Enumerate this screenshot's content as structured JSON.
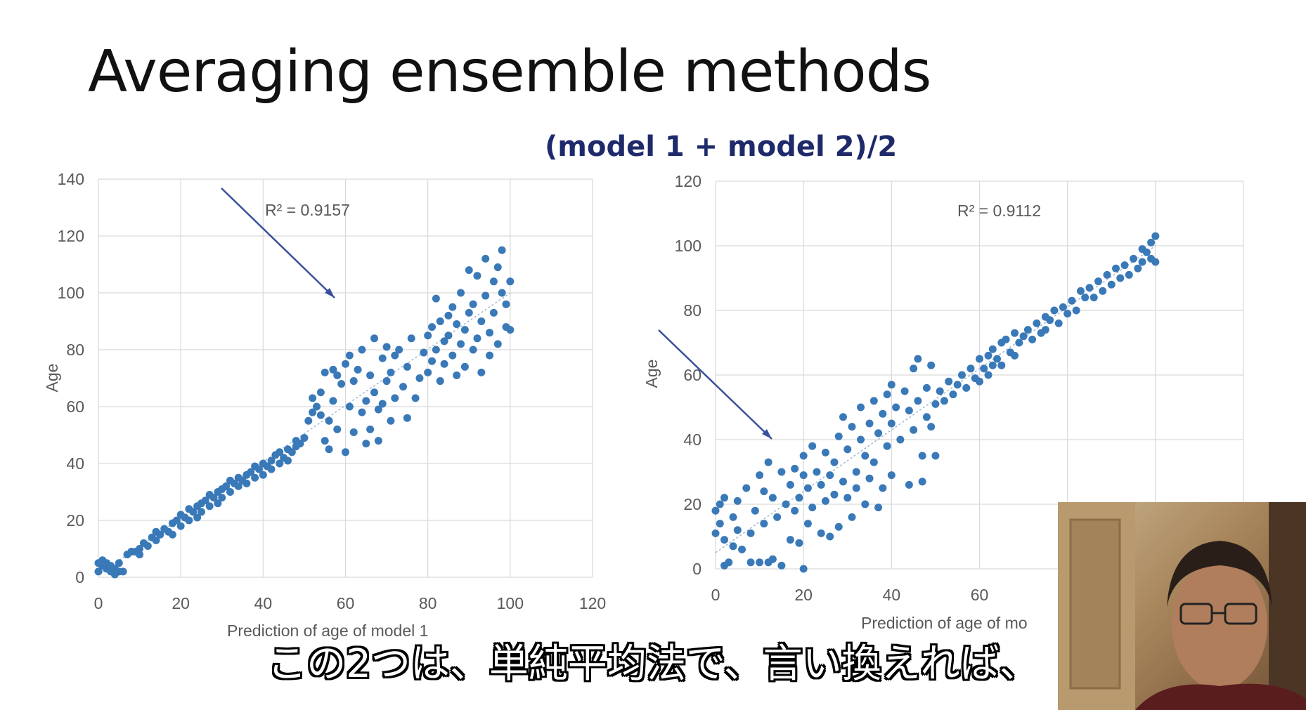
{
  "slide": {
    "title": "Averaging ensemble methods",
    "subtitle": "(model 1 + model 2)/2"
  },
  "caption": "この2つは、単純平均法で、言い換えれば、",
  "colors": {
    "points": "#3a79b8",
    "arrow": "#3a4f9c",
    "subtitle": "#1f2a6b"
  },
  "chart_data": [
    {
      "type": "scatter",
      "title": "",
      "xlabel": "Prediction of age of model 1",
      "ylabel": "Age",
      "xlim": [
        0,
        120
      ],
      "ylim": [
        0,
        140
      ],
      "xticks": [
        0,
        20,
        40,
        60,
        80,
        100,
        120
      ],
      "yticks": [
        0,
        20,
        40,
        60,
        80,
        100,
        120,
        140
      ],
      "annotation": "R² = 0.9157",
      "trendline": [
        [
          0,
          1
        ],
        [
          100,
          100
        ]
      ],
      "grid": true,
      "points": [
        [
          0,
          2
        ],
        [
          0,
          5
        ],
        [
          1,
          4
        ],
        [
          1,
          6
        ],
        [
          2,
          3
        ],
        [
          2,
          5
        ],
        [
          3,
          2
        ],
        [
          3,
          4
        ],
        [
          4,
          1
        ],
        [
          4,
          3
        ],
        [
          5,
          2
        ],
        [
          6,
          2
        ],
        [
          5,
          5
        ],
        [
          7,
          8
        ],
        [
          8,
          9
        ],
        [
          9,
          9
        ],
        [
          10,
          10
        ],
        [
          10,
          8
        ],
        [
          11,
          12
        ],
        [
          12,
          11
        ],
        [
          13,
          14
        ],
        [
          14,
          13
        ],
        [
          14,
          16
        ],
        [
          15,
          15
        ],
        [
          16,
          17
        ],
        [
          17,
          16
        ],
        [
          18,
          15
        ],
        [
          18,
          19
        ],
        [
          19,
          20
        ],
        [
          20,
          22
        ],
        [
          20,
          18
        ],
        [
          21,
          21
        ],
        [
          22,
          24
        ],
        [
          22,
          20
        ],
        [
          23,
          23
        ],
        [
          24,
          25
        ],
        [
          24,
          21
        ],
        [
          25,
          26
        ],
        [
          25,
          23
        ],
        [
          26,
          27
        ],
        [
          27,
          25
        ],
        [
          27,
          29
        ],
        [
          28,
          28
        ],
        [
          29,
          30
        ],
        [
          29,
          26
        ],
        [
          30,
          31
        ],
        [
          30,
          28
        ],
        [
          31,
          32
        ],
        [
          32,
          30
        ],
        [
          32,
          34
        ],
        [
          33,
          33
        ],
        [
          34,
          32
        ],
        [
          34,
          35
        ],
        [
          35,
          34
        ],
        [
          36,
          36
        ],
        [
          36,
          33
        ],
        [
          37,
          37
        ],
        [
          38,
          35
        ],
        [
          38,
          39
        ],
        [
          39,
          38
        ],
        [
          40,
          40
        ],
        [
          40,
          36
        ],
        [
          41,
          39
        ],
        [
          42,
          41
        ],
        [
          42,
          38
        ],
        [
          43,
          43
        ],
        [
          44,
          40
        ],
        [
          44,
          44
        ],
        [
          45,
          42
        ],
        [
          46,
          45
        ],
        [
          46,
          41
        ],
        [
          47,
          44
        ],
        [
          48,
          46
        ],
        [
          48,
          48
        ],
        [
          49,
          47
        ],
        [
          50,
          49
        ],
        [
          51,
          55
        ],
        [
          52,
          58
        ],
        [
          52,
          63
        ],
        [
          53,
          60
        ],
        [
          54,
          57
        ],
        [
          54,
          65
        ],
        [
          55,
          72
        ],
        [
          55,
          48
        ],
        [
          56,
          45
        ],
        [
          56,
          55
        ],
        [
          57,
          62
        ],
        [
          57,
          73
        ],
        [
          58,
          71
        ],
        [
          58,
          52
        ],
        [
          59,
          68
        ],
        [
          60,
          75
        ],
        [
          60,
          44
        ],
        [
          61,
          78
        ],
        [
          61,
          60
        ],
        [
          62,
          69
        ],
        [
          62,
          51
        ],
        [
          63,
          73
        ],
        [
          64,
          80
        ],
        [
          64,
          58
        ],
        [
          65,
          62
        ],
        [
          65,
          47
        ],
        [
          66,
          71
        ],
        [
          66,
          52
        ],
        [
          67,
          84
        ],
        [
          67,
          65
        ],
        [
          68,
          59
        ],
        [
          68,
          48
        ],
        [
          69,
          77
        ],
        [
          69,
          61
        ],
        [
          70,
          81
        ],
        [
          70,
          69
        ],
        [
          71,
          72
        ],
        [
          71,
          55
        ],
        [
          72,
          63
        ],
        [
          72,
          78
        ],
        [
          73,
          80
        ],
        [
          74,
          67
        ],
        [
          75,
          56
        ],
        [
          75,
          74
        ],
        [
          76,
          84
        ],
        [
          77,
          63
        ],
        [
          78,
          70
        ],
        [
          79,
          79
        ],
        [
          80,
          85
        ],
        [
          80,
          72
        ],
        [
          81,
          88
        ],
        [
          81,
          76
        ],
        [
          82,
          98
        ],
        [
          82,
          80
        ],
        [
          83,
          90
        ],
        [
          83,
          69
        ],
        [
          84,
          83
        ],
        [
          84,
          75
        ],
        [
          85,
          92
        ],
        [
          85,
          85
        ],
        [
          86,
          78
        ],
        [
          86,
          95
        ],
        [
          87,
          71
        ],
        [
          87,
          89
        ],
        [
          88,
          82
        ],
        [
          88,
          100
        ],
        [
          89,
          87
        ],
        [
          89,
          74
        ],
        [
          90,
          93
        ],
        [
          90,
          108
        ],
        [
          91,
          80
        ],
        [
          91,
          96
        ],
        [
          92,
          84
        ],
        [
          92,
          106
        ],
        [
          93,
          72
        ],
        [
          93,
          90
        ],
        [
          94,
          112
        ],
        [
          94,
          99
        ],
        [
          95,
          78
        ],
        [
          95,
          86
        ],
        [
          96,
          104
        ],
        [
          96,
          93
        ],
        [
          97,
          109
        ],
        [
          97,
          82
        ],
        [
          98,
          100
        ],
        [
          98,
          115
        ],
        [
          99,
          88
        ],
        [
          99,
          96
        ],
        [
          100,
          104
        ],
        [
          100,
          87
        ]
      ]
    },
    {
      "type": "scatter",
      "title": "",
      "xlabel": "Prediction of age of mo",
      "ylabel": "Age",
      "xlim": [
        0,
        120
      ],
      "ylim": [
        0,
        120
      ],
      "xticks": [
        0,
        20,
        40,
        60
      ],
      "yticks": [
        0,
        20,
        40,
        60,
        80,
        100,
        120
      ],
      "annotation": "R² = 0.9112",
      "trendline": [
        [
          0,
          5
        ],
        [
          100,
          100
        ]
      ],
      "grid": true,
      "points": [
        [
          0,
          18
        ],
        [
          0,
          11
        ],
        [
          1,
          20
        ],
        [
          1,
          14
        ],
        [
          2,
          9
        ],
        [
          2,
          22
        ],
        [
          2,
          1
        ],
        [
          3,
          2
        ],
        [
          4,
          16
        ],
        [
          4,
          7
        ],
        [
          5,
          12
        ],
        [
          5,
          21
        ],
        [
          6,
          6
        ],
        [
          7,
          25
        ],
        [
          8,
          2
        ],
        [
          8,
          11
        ],
        [
          9,
          18
        ],
        [
          10,
          2
        ],
        [
          10,
          29
        ],
        [
          11,
          14
        ],
        [
          11,
          24
        ],
        [
          12,
          2
        ],
        [
          12,
          33
        ],
        [
          13,
          22
        ],
        [
          13,
          3
        ],
        [
          14,
          16
        ],
        [
          15,
          30
        ],
        [
          15,
          1
        ],
        [
          16,
          20
        ],
        [
          17,
          26
        ],
        [
          17,
          9
        ],
        [
          18,
          31
        ],
        [
          18,
          18
        ],
        [
          19,
          22
        ],
        [
          19,
          8
        ],
        [
          20,
          35
        ],
        [
          20,
          29
        ],
        [
          20,
          0
        ],
        [
          21,
          14
        ],
        [
          21,
          25
        ],
        [
          22,
          38
        ],
        [
          22,
          19
        ],
        [
          23,
          30
        ],
        [
          24,
          11
        ],
        [
          24,
          26
        ],
        [
          25,
          36
        ],
        [
          25,
          21
        ],
        [
          26,
          10
        ],
        [
          26,
          29
        ],
        [
          27,
          33
        ],
        [
          27,
          23
        ],
        [
          28,
          41
        ],
        [
          28,
          13
        ],
        [
          29,
          27
        ],
        [
          29,
          47
        ],
        [
          30,
          22
        ],
        [
          30,
          37
        ],
        [
          31,
          16
        ],
        [
          31,
          44
        ],
        [
          32,
          30
        ],
        [
          32,
          25
        ],
        [
          33,
          50
        ],
        [
          33,
          40
        ],
        [
          34,
          35
        ],
        [
          34,
          20
        ],
        [
          35,
          45
        ],
        [
          35,
          28
        ],
        [
          36,
          52
        ],
        [
          36,
          33
        ],
        [
          37,
          42
        ],
        [
          37,
          19
        ],
        [
          38,
          48
        ],
        [
          38,
          25
        ],
        [
          39,
          38
        ],
        [
          39,
          54
        ],
        [
          40,
          45
        ],
        [
          40,
          57
        ],
        [
          40,
          29
        ],
        [
          41,
          50
        ],
        [
          42,
          40
        ],
        [
          43,
          55
        ],
        [
          44,
          49
        ],
        [
          44,
          26
        ],
        [
          45,
          62
        ],
        [
          45,
          43
        ],
        [
          46,
          65
        ],
        [
          46,
          52
        ],
        [
          47,
          35
        ],
        [
          47,
          27
        ],
        [
          48,
          56
        ],
        [
          48,
          47
        ],
        [
          49,
          63
        ],
        [
          49,
          44
        ],
        [
          50,
          51
        ],
        [
          50,
          35
        ],
        [
          51,
          55
        ],
        [
          52,
          52
        ],
        [
          53,
          58
        ],
        [
          54,
          54
        ],
        [
          55,
          57
        ],
        [
          56,
          60
        ],
        [
          57,
          56
        ],
        [
          58,
          62
        ],
        [
          59,
          59
        ],
        [
          60,
          65
        ],
        [
          60,
          58
        ],
        [
          61,
          62
        ],
        [
          62,
          66
        ],
        [
          62,
          60
        ],
        [
          63,
          68
        ],
        [
          63,
          63
        ],
        [
          64,
          65
        ],
        [
          65,
          70
        ],
        [
          65,
          63
        ],
        [
          66,
          71
        ],
        [
          67,
          67
        ],
        [
          68,
          73
        ],
        [
          68,
          66
        ],
        [
          69,
          70
        ],
        [
          70,
          72
        ],
        [
          71,
          74
        ],
        [
          72,
          71
        ],
        [
          73,
          76
        ],
        [
          74,
          73
        ],
        [
          75,
          78
        ],
        [
          75,
          74
        ],
        [
          76,
          77
        ],
        [
          77,
          80
        ],
        [
          78,
          76
        ],
        [
          79,
          81
        ],
        [
          80,
          79
        ],
        [
          81,
          83
        ],
        [
          82,
          80
        ],
        [
          83,
          86
        ],
        [
          84,
          84
        ],
        [
          85,
          87
        ],
        [
          86,
          84
        ],
        [
          87,
          89
        ],
        [
          88,
          86
        ],
        [
          89,
          91
        ],
        [
          90,
          88
        ],
        [
          91,
          93
        ],
        [
          92,
          90
        ],
        [
          93,
          94
        ],
        [
          94,
          91
        ],
        [
          95,
          96
        ],
        [
          96,
          93
        ],
        [
          97,
          99
        ],
        [
          97,
          95
        ],
        [
          98,
          98
        ],
        [
          99,
          101
        ],
        [
          99,
          96
        ],
        [
          100,
          103
        ],
        [
          100,
          95
        ]
      ]
    }
  ]
}
